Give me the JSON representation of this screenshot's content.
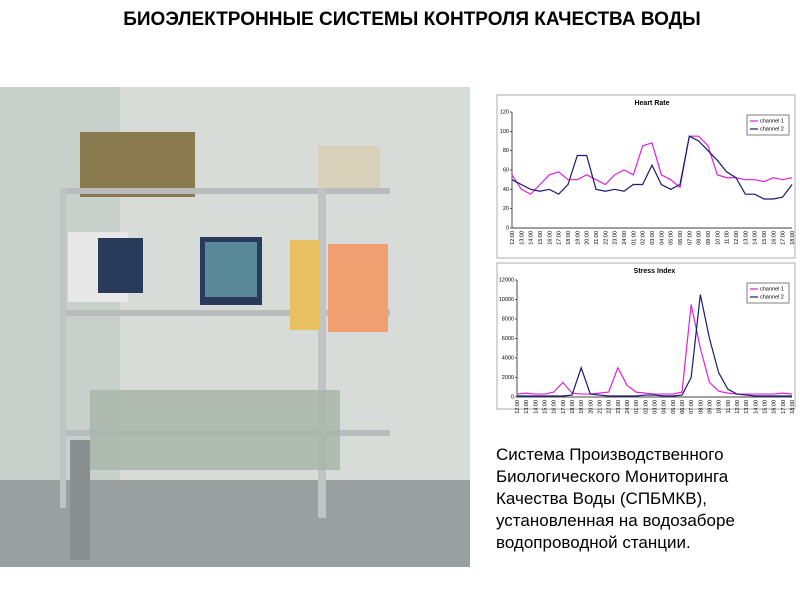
{
  "title": "БИОЭЛЕКТРОННЫЕ СИСТЕМЫ КОНТРОЛЯ КАЧЕСТВА ВОДЫ",
  "caption": [
    "Система Производственного",
    "Биологического Мониторинга",
    "Качества Воды (СПБМКВ),",
    "установленная на водозаборе",
    "водопроводной станции."
  ],
  "chart_data": [
    {
      "type": "line",
      "title": "Heart Rate",
      "legend": "upper right",
      "grid": false,
      "categories": [
        "12:00",
        "13:00",
        "14:00",
        "15:00",
        "16:00",
        "17:00",
        "18:00",
        "19:00",
        "20:00",
        "21:00",
        "22:00",
        "23:00",
        "24:00",
        "01:00",
        "02:00",
        "03:00",
        "04:00",
        "05:00",
        "06:00",
        "07:00",
        "08:00",
        "09:00",
        "10:00",
        "11:00",
        "12:00",
        "13:00",
        "14:00",
        "15:00",
        "16:00",
        "17:00",
        "18:00"
      ],
      "ylim": [
        0,
        120
      ],
      "yticks": [
        0,
        20,
        40,
        60,
        80,
        100,
        120
      ],
      "series": [
        {
          "name": "channel 1",
          "color": "#e020e0",
          "values": [
            55,
            40,
            35,
            45,
            55,
            58,
            50,
            50,
            55,
            50,
            45,
            55,
            60,
            55,
            85,
            88,
            55,
            50,
            42,
            95,
            95,
            85,
            55,
            52,
            52,
            50,
            50,
            48,
            52,
            50,
            52
          ]
        },
        {
          "name": "channel 2",
          "color": "#1a1a6e",
          "values": [
            50,
            45,
            40,
            38,
            40,
            35,
            45,
            75,
            75,
            40,
            38,
            40,
            38,
            45,
            45,
            65,
            45,
            40,
            45,
            95,
            90,
            80,
            70,
            58,
            52,
            35,
            35,
            30,
            30,
            32,
            45
          ]
        }
      ]
    },
    {
      "type": "line",
      "title": "Stress Index",
      "legend": "upper right",
      "grid": false,
      "categories": [
        "12:00",
        "13:00",
        "14:00",
        "15:00",
        "16:00",
        "17:00",
        "18:00",
        "19:00",
        "20:00",
        "21:00",
        "22:00",
        "23:00",
        "24:00",
        "01:00",
        "02:00",
        "03:00",
        "04:00",
        "05:00",
        "06:00",
        "07:00",
        "08:00",
        "09:00",
        "10:00",
        "11:00",
        "12:00",
        "13:00",
        "14:00",
        "15:00",
        "16:00",
        "17:00",
        "18:00"
      ],
      "ylim": [
        0,
        12000
      ],
      "yticks": [
        0,
        2000,
        4000,
        6000,
        8000,
        10000,
        12000
      ],
      "series": [
        {
          "name": "channel 1",
          "color": "#e020e0",
          "values": [
            300,
            400,
            300,
            300,
            500,
            1500,
            400,
            300,
            300,
            400,
            500,
            3000,
            1200,
            500,
            400,
            300,
            300,
            300,
            500,
            9500,
            5000,
            1500,
            600,
            400,
            300,
            300,
            300,
            300,
            300,
            400,
            300
          ]
        },
        {
          "name": "channel 2",
          "color": "#1a1a6e",
          "values": [
            100,
            100,
            100,
            100,
            100,
            100,
            200,
            3000,
            300,
            200,
            100,
            100,
            100,
            100,
            200,
            200,
            100,
            100,
            200,
            2000,
            10500,
            6000,
            2500,
            800,
            300,
            200,
            100,
            100,
            100,
            100,
            100
          ]
        }
      ]
    }
  ]
}
